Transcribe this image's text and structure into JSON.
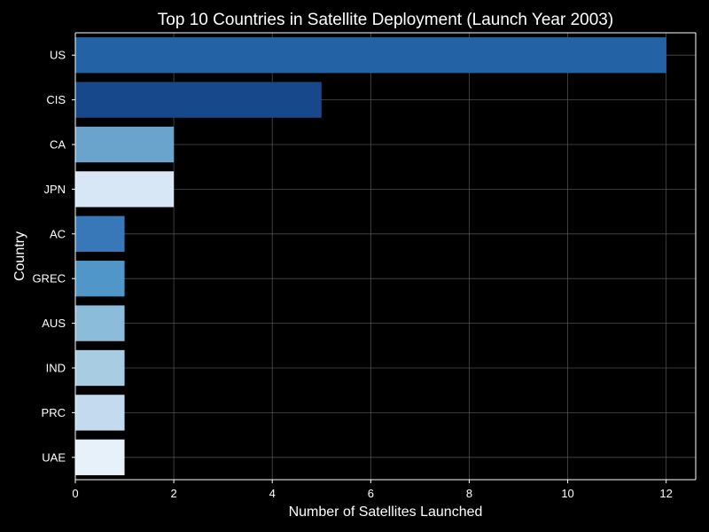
{
  "chart_data": {
    "type": "bar",
    "orientation": "horizontal",
    "title": "Top 10 Countries in Satellite Deployment (Launch Year 2003)",
    "xlabel": "Number of Satellites Launched",
    "ylabel": "Country",
    "categories": [
      "US",
      "CIS",
      "CA",
      "JPN",
      "AC",
      "GREC",
      "AUS",
      "IND",
      "PRC",
      "UAE"
    ],
    "values": [
      12,
      5,
      2,
      2,
      1,
      1,
      1,
      1,
      1,
      1
    ],
    "colors": [
      "#2362a4",
      "#17488c",
      "#6aa4cc",
      "#d8e7f5",
      "#3978b8",
      "#5096c8",
      "#8bbcda",
      "#a8cce2",
      "#c4daee",
      "#e7f1fa"
    ],
    "xlim": [
      0,
      12.6
    ],
    "xticks": [
      0,
      2,
      4,
      6,
      8,
      10,
      12
    ],
    "grid": true,
    "background": "#000000",
    "text_color": "#ffffff",
    "grid_color": "#5a5a5a"
  }
}
